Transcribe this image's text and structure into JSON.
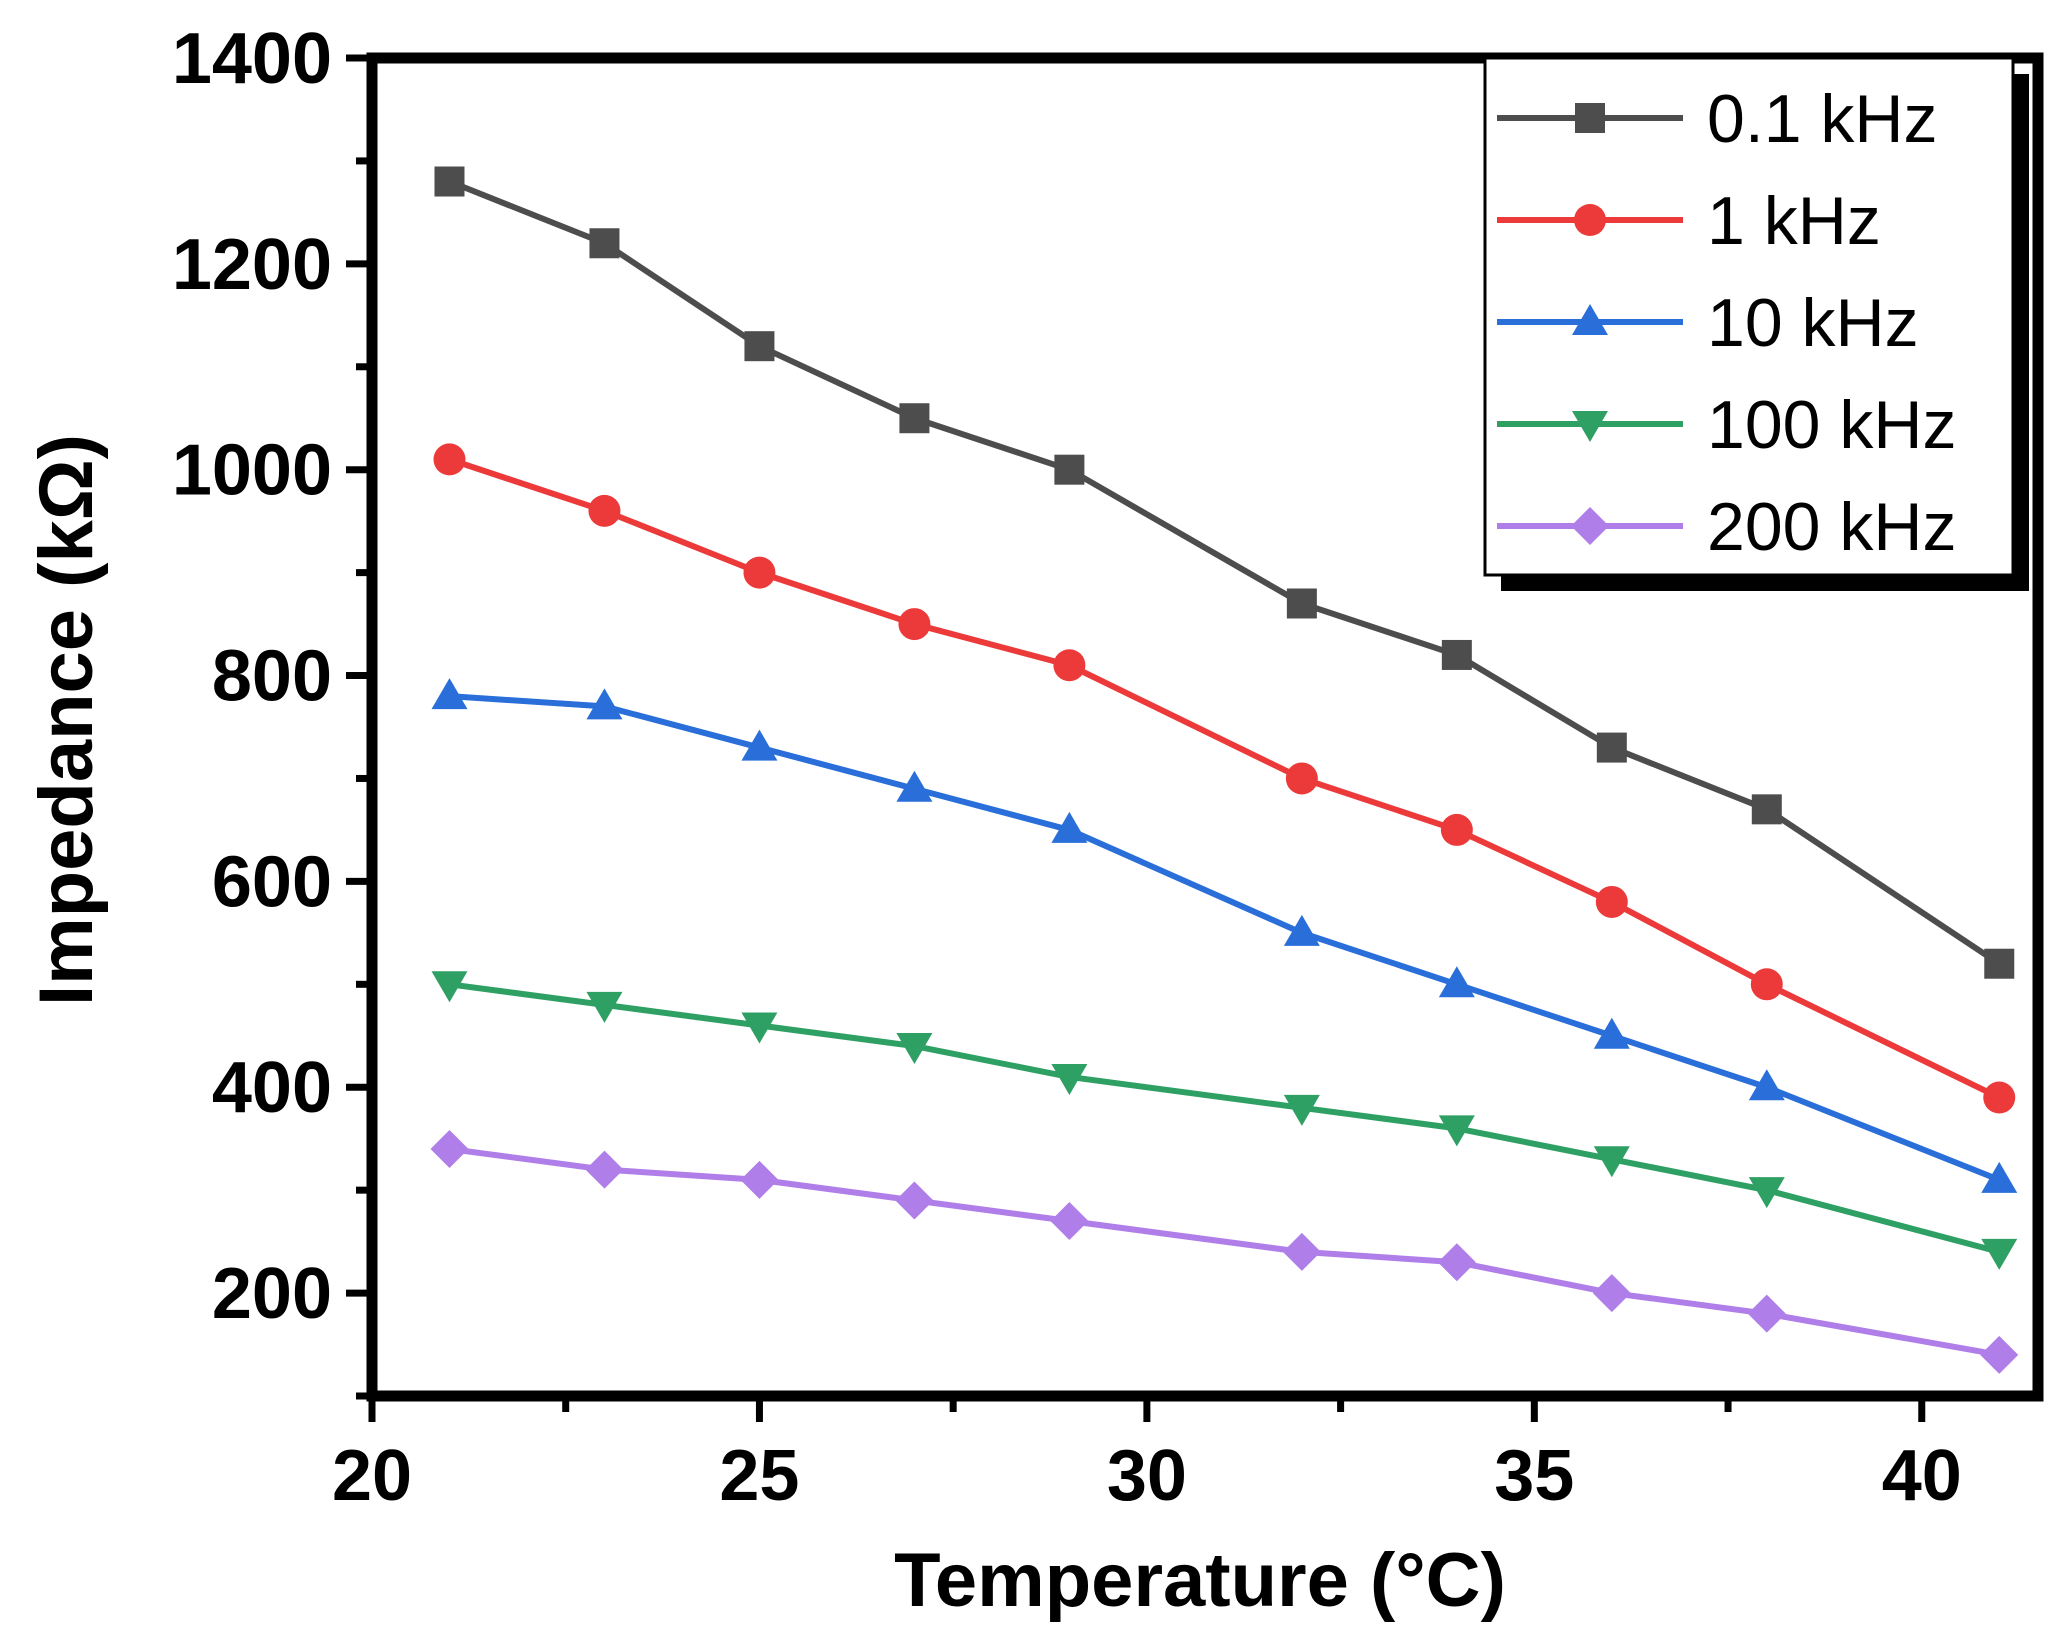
{
  "chart_data": {
    "type": "line",
    "title": "",
    "xlabel": "Temperature (°C)",
    "ylabel": "Impedance (kΩ)",
    "xlim": [
      20,
      41.5
    ],
    "ylim": [
      100,
      1400
    ],
    "xticks": [
      20,
      25,
      30,
      35,
      40
    ],
    "yticks": [
      200,
      400,
      600,
      800,
      1000,
      1200,
      1400
    ],
    "grid": false,
    "legend_position": "top-right",
    "x": [
      21,
      23,
      25,
      27,
      29,
      32,
      34,
      36,
      38,
      41
    ],
    "series": [
      {
        "name": "0.1 kHz",
        "color": "#4d4d4d",
        "marker": "square",
        "values": [
          1280,
          1220,
          1120,
          1050,
          1000,
          870,
          820,
          730,
          670,
          520
        ]
      },
      {
        "name": "1 kHz",
        "color": "#ec3a3a",
        "marker": "circle",
        "values": [
          1010,
          960,
          900,
          850,
          810,
          700,
          650,
          580,
          500,
          390
        ]
      },
      {
        "name": "10 kHz",
        "color": "#2a6fd9",
        "marker": "triangle-up",
        "values": [
          780,
          770,
          730,
          690,
          650,
          550,
          500,
          450,
          400,
          310
        ]
      },
      {
        "name": "100 kHz",
        "color": "#2fa064",
        "marker": "triangle-down",
        "values": [
          500,
          480,
          460,
          440,
          410,
          380,
          360,
          330,
          300,
          240
        ]
      },
      {
        "name": "200 kHz",
        "color": "#b07ee8",
        "marker": "diamond",
        "values": [
          340,
          320,
          310,
          290,
          270,
          240,
          230,
          200,
          180,
          140
        ]
      }
    ]
  }
}
